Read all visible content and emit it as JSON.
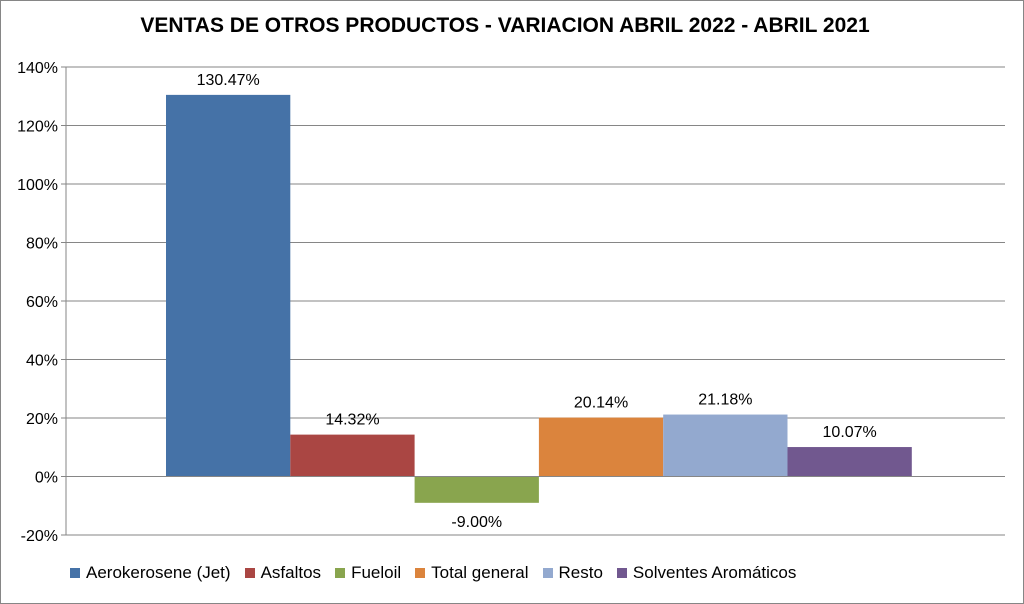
{
  "chart_data": {
    "type": "bar",
    "title": "VENTAS DE OTROS PRODUCTOS - VARIACION ABRIL 2022 - ABRIL 2021",
    "xlabel": "",
    "ylabel": "",
    "ylim": [
      -20,
      140
    ],
    "yticks": [
      -20,
      0,
      20,
      40,
      60,
      80,
      100,
      120,
      140
    ],
    "ytick_labels": [
      "-20%",
      "0%",
      "20%",
      "40%",
      "60%",
      "80%",
      "100%",
      "120%",
      "140%"
    ],
    "grid": true,
    "legend_position": "bottom",
    "series": [
      {
        "name": "Aerokerosene (Jet)",
        "value": 130.47,
        "label": "130.47%",
        "color": "#4572A7"
      },
      {
        "name": "Asfaltos",
        "value": 14.32,
        "label": "14.32%",
        "color": "#AA4643"
      },
      {
        "name": "Fueloil",
        "value": -9.0,
        "label": "-9.00%",
        "color": "#89A54E"
      },
      {
        "name": "Total general",
        "value": 20.14,
        "label": "20.14%",
        "color": "#DB843D"
      },
      {
        "name": "Resto",
        "value": 21.18,
        "label": "21.18%",
        "color": "#93A9CF"
      },
      {
        "name": "Solventes Aromáticos",
        "value": 10.07,
        "label": "10.07%",
        "color": "#71588F"
      }
    ]
  }
}
